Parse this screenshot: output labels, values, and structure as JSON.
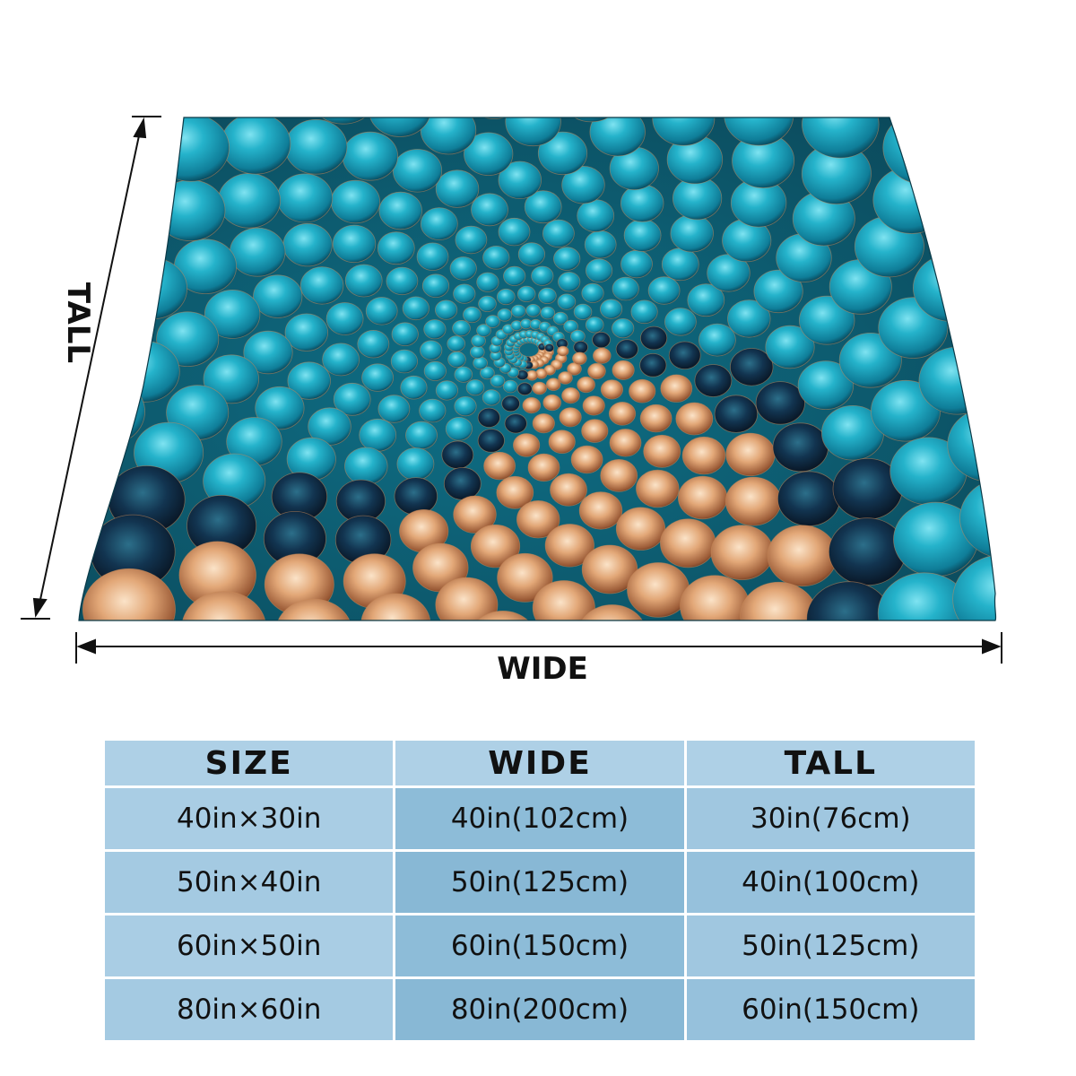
{
  "product": {
    "image": "fractal-spiral-blanket",
    "colors": {
      "teal": "#1e9bb4",
      "deep_teal": "#0d5b70",
      "dark_navy": "#0b1a2c",
      "copper": "#d99a6c",
      "light_copper": "#f3c9a2",
      "bright_blue": "#3aa7ea"
    }
  },
  "dimension_labels": {
    "wide": "WIDE",
    "tall": "TALL"
  },
  "size_table": {
    "headers": [
      "SIZE",
      "WIDE",
      "TALL"
    ],
    "rows": [
      [
        "40in×30in",
        "40in(102cm)",
        "30in(76cm)"
      ],
      [
        "50in×40in",
        "50in(125cm)",
        "40in(100cm)"
      ],
      [
        "60in×50in",
        "60in(150cm)",
        "50in(125cm)"
      ],
      [
        "80in×60in",
        "80in(200cm)",
        "60in(150cm)"
      ]
    ]
  }
}
